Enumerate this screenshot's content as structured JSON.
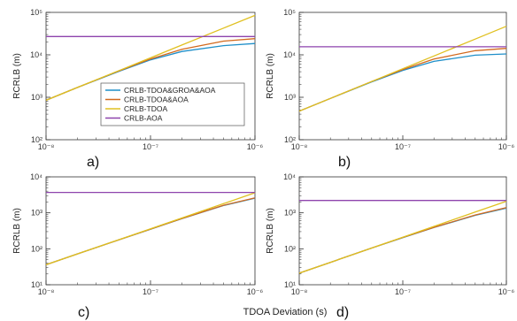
{
  "figure": {
    "shared_xlabel": "TDOA Deviation (s)"
  },
  "legend": {
    "entries": [
      {
        "label": "CRLB-TDOA&GROA&AOA",
        "color": "#1f8fc9"
      },
      {
        "label": "CRLB-TDOA&AOA",
        "color": "#d2691e"
      },
      {
        "label": "CRLB-TDOA",
        "color": "#e0c020"
      },
      {
        "label": "CRLB-AOA",
        "color": "#8e44ad"
      }
    ]
  },
  "chart_data": [
    {
      "type": "line",
      "panel_label": "a)",
      "xlabel": "",
      "ylabel": "RCRLB (m)",
      "xscale": "log",
      "yscale": "log",
      "xlim": [
        1e-08,
        1e-06
      ],
      "ylim": [
        100,
        100000
      ],
      "xticks": [
        {
          "value": 1e-08,
          "label": "10⁻⁸"
        },
        {
          "value": 1e-07,
          "label": "10⁻⁷"
        },
        {
          "value": 1e-06,
          "label": "10⁻⁶"
        }
      ],
      "yticks": [
        {
          "value": 100,
          "label": "10²"
        },
        {
          "value": 1000,
          "label": "10³"
        },
        {
          "value": 10000,
          "label": "10⁴"
        },
        {
          "value": 100000,
          "label": "10⁵"
        }
      ],
      "grid": false,
      "legend_position": "bottom-right",
      "x": [
        1e-08,
        2e-08,
        5e-08,
        1e-07,
        2e-07,
        5e-07,
        1e-06
      ],
      "series": [
        {
          "name": "CRLB-TDOA&GROA&AOA",
          "color": "#1f8fc9",
          "values": [
            850,
            1700,
            4100,
            7600,
            12000,
            16500,
            18500
          ]
        },
        {
          "name": "CRLB-TDOA&AOA",
          "color": "#d2691e",
          "values": [
            850,
            1700,
            4200,
            8000,
            13500,
            21000,
            24000
          ]
        },
        {
          "name": "CRLB-TDOA",
          "color": "#e0c020",
          "values": [
            850,
            1700,
            4250,
            8500,
            17000,
            42500,
            85000
          ]
        },
        {
          "name": "CRLB-AOA",
          "color": "#8e44ad",
          "values": [
            27000,
            27000,
            27000,
            27000,
            27000,
            27000,
            27000
          ]
        }
      ]
    },
    {
      "type": "line",
      "panel_label": "b)",
      "xlabel": "",
      "ylabel": "RCRLB (m)",
      "xscale": "log",
      "yscale": "log",
      "xlim": [
        1e-08,
        1e-06
      ],
      "ylim": [
        100,
        100000
      ],
      "xticks": [
        {
          "value": 1e-08,
          "label": "10⁻⁸"
        },
        {
          "value": 1e-07,
          "label": "10⁻⁷"
        },
        {
          "value": 1e-06,
          "label": "10⁻⁶"
        }
      ],
      "yticks": [
        {
          "value": 100,
          "label": "10²"
        },
        {
          "value": 1000,
          "label": "10³"
        },
        {
          "value": 10000,
          "label": "10⁴"
        },
        {
          "value": 100000,
          "label": "10⁵"
        }
      ],
      "grid": false,
      "x": [
        1e-08,
        2e-08,
        5e-08,
        1e-07,
        2e-07,
        5e-07,
        1e-06
      ],
      "series": [
        {
          "name": "CRLB-TDOA&GROA&AOA",
          "color": "#1f8fc9",
          "values": [
            470,
            940,
            2300,
            4300,
            7000,
            9800,
            10500
          ]
        },
        {
          "name": "CRLB-TDOA&AOA",
          "color": "#d2691e",
          "values": [
            470,
            940,
            2350,
            4500,
            8000,
            12500,
            14200
          ]
        },
        {
          "name": "CRLB-TDOA",
          "color": "#e0c020",
          "values": [
            470,
            940,
            2350,
            4700,
            9400,
            23500,
            47000
          ]
        },
        {
          "name": "CRLB-AOA",
          "color": "#8e44ad",
          "values": [
            15500,
            15500,
            15500,
            15500,
            15500,
            15500,
            15500
          ]
        }
      ]
    },
    {
      "type": "line",
      "panel_label": "c)",
      "xlabel": "",
      "ylabel": "RCRLB (m)",
      "xscale": "log",
      "yscale": "log",
      "xlim": [
        1e-08,
        1e-06
      ],
      "ylim": [
        10,
        10000
      ],
      "xticks": [
        {
          "value": 1e-08,
          "label": "10⁻⁸"
        },
        {
          "value": 1e-07,
          "label": "10⁻⁷"
        },
        {
          "value": 1e-06,
          "label": "10⁻⁶"
        }
      ],
      "yticks": [
        {
          "value": 10,
          "label": "10¹"
        },
        {
          "value": 100,
          "label": "10²"
        },
        {
          "value": 1000,
          "label": "10³"
        },
        {
          "value": 10000,
          "label": "10⁴"
        }
      ],
      "grid": false,
      "x": [
        1e-08,
        2e-08,
        5e-08,
        1e-07,
        2e-07,
        5e-07,
        1e-06
      ],
      "series": [
        {
          "name": "CRLB-TDOA&GROA&AOA",
          "color": "#1f8fc9",
          "values": [
            36,
            72,
            178,
            350,
            690,
            1600,
            2550
          ]
        },
        {
          "name": "CRLB-TDOA&AOA",
          "color": "#d2691e",
          "values": [
            36,
            72,
            178,
            352,
            695,
            1620,
            2600
          ]
        },
        {
          "name": "CRLB-TDOA",
          "color": "#e0c020",
          "values": [
            36,
            72,
            180,
            360,
            720,
            1800,
            3600
          ]
        },
        {
          "name": "CRLB-AOA",
          "color": "#8e44ad",
          "values": [
            3700,
            3700,
            3700,
            3700,
            3700,
            3700,
            3700
          ]
        }
      ]
    },
    {
      "type": "line",
      "panel_label": "d)",
      "xlabel": "",
      "ylabel": "RCRLB (m)",
      "xscale": "log",
      "yscale": "log",
      "xlim": [
        1e-08,
        1e-06
      ],
      "ylim": [
        10,
        10000
      ],
      "xticks": [
        {
          "value": 1e-08,
          "label": "10⁻⁸"
        },
        {
          "value": 1e-07,
          "label": "10⁻⁷"
        },
        {
          "value": 1e-06,
          "label": "10⁻⁶"
        }
      ],
      "yticks": [
        {
          "value": 10,
          "label": "10¹"
        },
        {
          "value": 100,
          "label": "10²"
        },
        {
          "value": 1000,
          "label": "10³"
        },
        {
          "value": 10000,
          "label": "10⁴"
        }
      ],
      "grid": false,
      "x": [
        1e-08,
        2e-08,
        5e-08,
        1e-07,
        2e-07,
        5e-07,
        1e-06
      ],
      "series": [
        {
          "name": "CRLB-TDOA&GROA&AOA",
          "color": "#1f8fc9",
          "values": [
            21,
            42,
            105,
            205,
            390,
            850,
            1350
          ]
        },
        {
          "name": "CRLB-TDOA&AOA",
          "color": "#d2691e",
          "values": [
            21,
            42,
            105,
            207,
            395,
            870,
            1400
          ]
        },
        {
          "name": "CRLB-TDOA",
          "color": "#e0c020",
          "values": [
            21,
            42,
            105,
            210,
            420,
            1050,
            2100
          ]
        },
        {
          "name": "CRLB-AOA",
          "color": "#8e44ad",
          "values": [
            2200,
            2200,
            2200,
            2200,
            2200,
            2200,
            2200
          ]
        }
      ]
    }
  ]
}
